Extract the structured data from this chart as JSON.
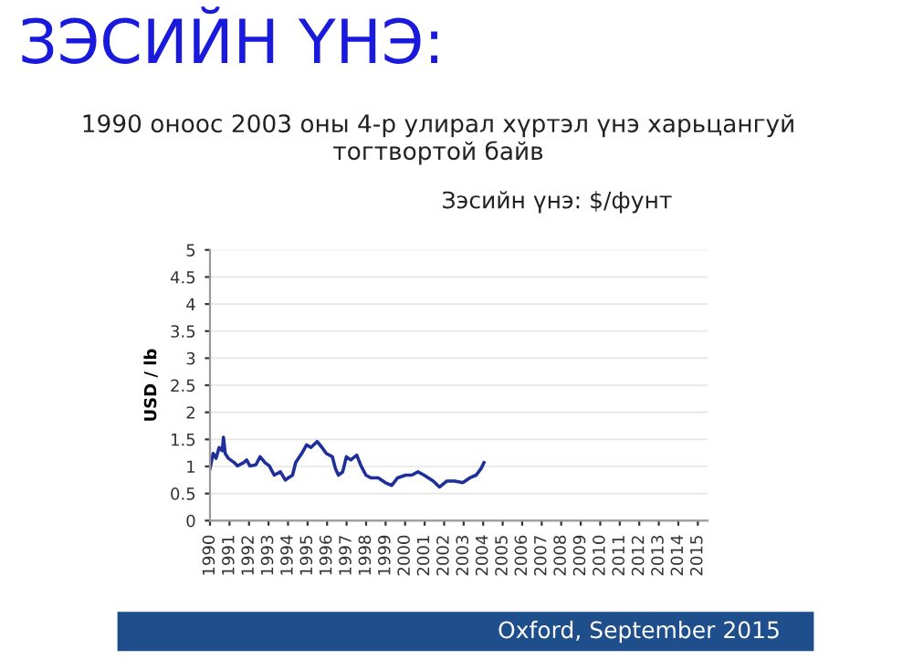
{
  "chart_data": {
    "type": "line",
    "title": "ЗЭСИЙН ҮНЭ:",
    "subtitle": "1990 оноос 2003 оны 4-р улирал хүртэл үнэ харьцангуй\nтогтвортой байв",
    "annotations": [
      "Зэсийн үнэ: $/фунт",
      "Oxford, September 2015"
    ],
    "ylabel": "USD / lb",
    "x": [
      1990.0,
      1990.16,
      1990.31,
      1990.47,
      1990.63,
      1990.69,
      1990.78,
      1990.94,
      1991.25,
      1991.41,
      1991.72,
      1991.88,
      1992.04,
      1992.35,
      1992.57,
      1992.82,
      1993.04,
      1993.29,
      1993.61,
      1993.86,
      1994.23,
      1994.39,
      1994.7,
      1994.95,
      1995.17,
      1995.49,
      1995.74,
      1995.96,
      1996.27,
      1996.43,
      1996.58,
      1996.8,
      1996.99,
      1997.21,
      1997.52,
      1997.74,
      1997.99,
      1998.24,
      1998.62,
      1998.99,
      1999.31,
      1999.62,
      2000.03,
      2000.34,
      2000.66,
      2000.97,
      2001.44,
      2001.76,
      2002.13,
      2002.54,
      2002.95,
      2003.32,
      2003.64,
      2003.89,
      2004.04
    ],
    "series": [
      {
        "color": "#1f2f9a",
        "values": [
          0.96,
          1.24,
          1.15,
          1.35,
          1.29,
          1.54,
          1.24,
          1.15,
          1.07,
          1.01,
          1.07,
          1.12,
          1.01,
          1.03,
          1.18,
          1.07,
          1.01,
          0.84,
          0.9,
          0.75,
          0.84,
          1.07,
          1.24,
          1.4,
          1.35,
          1.46,
          1.35,
          1.24,
          1.18,
          0.96,
          0.84,
          0.9,
          1.18,
          1.12,
          1.21,
          1.01,
          0.84,
          0.79,
          0.79,
          0.7,
          0.65,
          0.79,
          0.84,
          0.84,
          0.9,
          0.84,
          0.73,
          0.62,
          0.73,
          0.73,
          0.7,
          0.79,
          0.84,
          0.96,
          1.07
        ]
      }
    ],
    "xlim": [
      1990,
      2015.5
    ],
    "xticks": [
      1990,
      1991,
      1992,
      1993,
      1994,
      1995,
      1996,
      1997,
      1998,
      1999,
      2000,
      2001,
      2002,
      2003,
      2004,
      2005,
      2006,
      2007,
      2008,
      2009,
      2010,
      2011,
      2012,
      2013,
      2014,
      2015
    ],
    "ylim": [
      0,
      5
    ],
    "yticks": [
      0,
      0.5,
      1,
      1.5,
      2,
      2.5,
      3,
      3.5,
      4,
      4.5,
      5
    ],
    "grid": "y",
    "legend": false,
    "marker": "none",
    "line_style": "solid"
  }
}
